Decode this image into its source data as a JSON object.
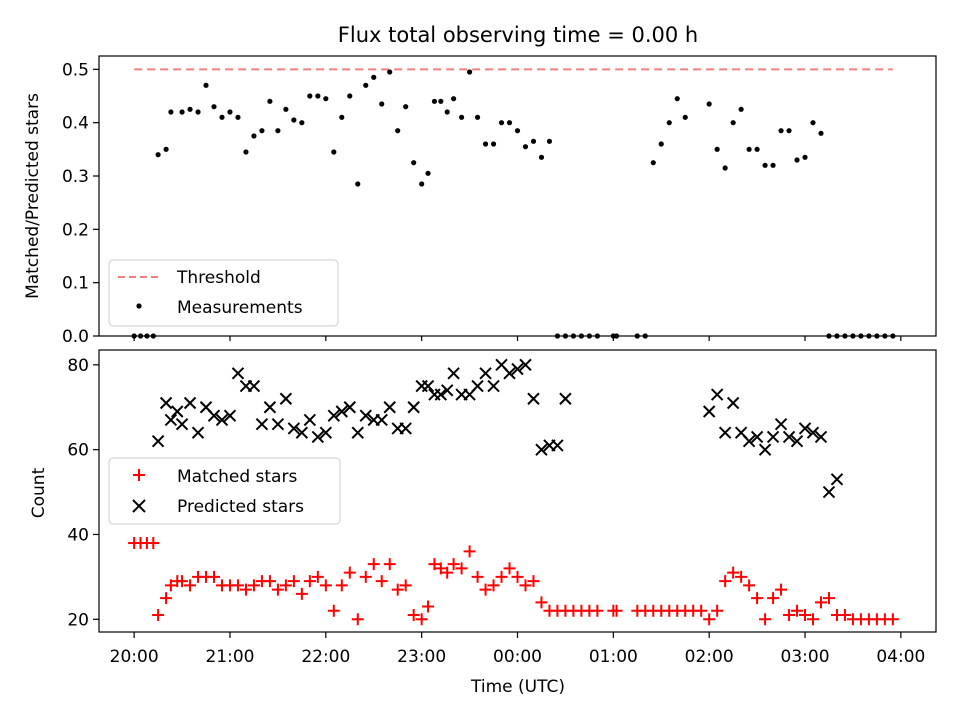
{
  "chart_data": [
    {
      "type": "scatter",
      "title": "Flux total observing time = 0.00 h",
      "ylabel": "Matched/Predicted stars",
      "xlabel": "",
      "ylim": [
        0,
        0.525
      ],
      "xlim": [
        "19:38",
        "04:22"
      ],
      "yticks": [
        "0.0",
        "0.1",
        "0.2",
        "0.3",
        "0.4",
        "0.5"
      ],
      "legend_position": "lower-left",
      "series": [
        {
          "name": "Threshold",
          "style": "dashed-line",
          "color": "#f08080",
          "x": [
            "20:00",
            "03:55"
          ],
          "y": [
            0.5,
            0.5
          ]
        },
        {
          "name": "Measurements",
          "style": "dots",
          "color": "#000000",
          "x": [
            "20:00",
            "20:04",
            "20:08",
            "20:12",
            "20:15",
            "20:20",
            "20:23",
            "20:30",
            "20:35",
            "20:40",
            "20:45",
            "20:50",
            "20:55",
            "21:00",
            "21:05",
            "21:10",
            "21:15",
            "21:20",
            "21:25",
            "21:30",
            "21:35",
            "21:40",
            "21:45",
            "21:50",
            "21:55",
            "22:00",
            "22:05",
            "22:10",
            "22:15",
            "22:20",
            "22:25",
            "22:30",
            "22:35",
            "22:40",
            "22:45",
            "22:50",
            "22:55",
            "23:00",
            "23:04",
            "23:08",
            "23:12",
            "23:16",
            "23:20",
            "23:25",
            "23:30",
            "23:35",
            "23:40",
            "23:45",
            "23:50",
            "23:55",
            "00:00",
            "00:05",
            "00:10",
            "00:15",
            "00:20",
            "00:25",
            "00:30",
            "00:35",
            "00:40",
            "00:45",
            "00:50",
            "01:00",
            "01:02",
            "01:15",
            "01:20",
            "01:25",
            "01:30",
            "01:35",
            "01:40",
            "01:45",
            "02:00",
            "02:05",
            "02:10",
            "02:15",
            "02:20",
            "02:25",
            "02:30",
            "02:35",
            "02:40",
            "02:45",
            "02:50",
            "02:55",
            "03:00",
            "03:05",
            "03:10",
            "03:15",
            "03:20",
            "03:25",
            "03:30",
            "03:35",
            "03:40",
            "03:45",
            "03:50",
            "03:55"
          ],
          "y": [
            0.0,
            0.0,
            0.0,
            0.0,
            0.34,
            0.35,
            0.42,
            0.42,
            0.425,
            0.42,
            0.47,
            0.43,
            0.41,
            0.42,
            0.41,
            0.345,
            0.375,
            0.385,
            0.44,
            0.385,
            0.425,
            0.405,
            0.4,
            0.45,
            0.45,
            0.445,
            0.345,
            0.41,
            0.45,
            0.285,
            0.47,
            0.485,
            0.435,
            0.495,
            0.385,
            0.43,
            0.325,
            0.285,
            0.305,
            0.44,
            0.44,
            0.42,
            0.445,
            0.41,
            0.495,
            0.41,
            0.36,
            0.36,
            0.4,
            0.4,
            0.385,
            0.355,
            0.365,
            0.335,
            0.365,
            0.0,
            0.0,
            0.0,
            0.0,
            0.0,
            0.0,
            0.0,
            0.0,
            0.0,
            0.0,
            0.325,
            0.36,
            0.4,
            0.445,
            0.41,
            0.435,
            0.35,
            0.315,
            0.4,
            0.425,
            0.35,
            0.35,
            0.32,
            0.32,
            0.385,
            0.385,
            0.33,
            0.335,
            0.4,
            0.38,
            0.0,
            0.0,
            0.0,
            0.0,
            0.0,
            0.0,
            0.0,
            0.0,
            0.0
          ]
        }
      ]
    },
    {
      "type": "scatter",
      "title": "",
      "ylabel": "Count",
      "xlabel": "Time (UTC)",
      "ylim": [
        17,
        83.5
      ],
      "yticks": [
        "20",
        "40",
        "60",
        "80"
      ],
      "xticks": [
        "20:00",
        "21:00",
        "22:00",
        "23:00",
        "00:00",
        "01:00",
        "02:00",
        "03:00",
        "04:00"
      ],
      "legend_position": "middle-left",
      "series": [
        {
          "name": "Matched stars",
          "marker": "+",
          "color": "#ff0000",
          "x": [
            "20:00",
            "20:04",
            "20:08",
            "20:12",
            "20:15",
            "20:20",
            "20:23",
            "20:27",
            "20:30",
            "20:35",
            "20:40",
            "20:45",
            "20:50",
            "20:55",
            "21:00",
            "21:05",
            "21:10",
            "21:15",
            "21:20",
            "21:25",
            "21:30",
            "21:35",
            "21:40",
            "21:45",
            "21:50",
            "21:55",
            "22:00",
            "22:05",
            "22:10",
            "22:15",
            "22:20",
            "22:25",
            "22:30",
            "22:35",
            "22:40",
            "22:45",
            "22:50",
            "22:55",
            "23:00",
            "23:04",
            "23:08",
            "23:12",
            "23:16",
            "23:20",
            "23:25",
            "23:30",
            "23:35",
            "23:40",
            "23:45",
            "23:50",
            "23:55",
            "00:00",
            "00:05",
            "00:10",
            "00:15",
            "00:20",
            "00:25",
            "00:30",
            "00:35",
            "00:40",
            "00:45",
            "00:50",
            "01:00",
            "01:02",
            "01:15",
            "01:20",
            "01:25",
            "01:30",
            "01:35",
            "01:40",
            "01:45",
            "01:50",
            "01:55",
            "02:00",
            "02:05",
            "02:10",
            "02:15",
            "02:20",
            "02:25",
            "02:30",
            "02:35",
            "02:40",
            "02:45",
            "02:50",
            "02:55",
            "03:00",
            "03:05",
            "03:10",
            "03:15",
            "03:20",
            "03:25",
            "03:30",
            "03:35",
            "03:40",
            "03:45",
            "03:50",
            "03:55"
          ],
          "y": [
            38,
            38,
            38,
            38,
            21,
            25,
            28,
            29,
            29,
            28,
            30,
            30,
            30,
            28,
            28,
            28,
            27,
            28,
            29,
            29,
            27,
            28,
            29,
            26,
            29,
            30,
            28,
            22,
            28,
            31,
            20,
            30,
            33,
            29,
            33,
            27,
            28,
            21,
            20,
            23,
            33,
            32,
            31,
            33,
            32,
            36,
            30,
            27,
            28,
            30,
            32,
            30,
            28,
            29,
            24,
            22,
            22,
            22,
            22,
            22,
            22,
            22,
            22,
            22,
            22,
            22,
            22,
            22,
            22,
            22,
            22,
            22,
            22,
            20,
            22,
            29,
            31,
            30,
            28,
            25,
            20,
            25,
            27,
            21,
            22,
            21,
            20,
            24,
            25,
            21,
            21,
            20,
            20,
            20,
            20,
            20,
            20
          ]
        },
        {
          "name": "Predicted stars",
          "marker": "x",
          "color": "#000000",
          "x": [
            "20:15",
            "20:20",
            "20:23",
            "20:27",
            "20:30",
            "20:35",
            "20:40",
            "20:45",
            "20:50",
            "20:55",
            "21:00",
            "21:05",
            "21:10",
            "21:15",
            "21:20",
            "21:25",
            "21:30",
            "21:35",
            "21:40",
            "21:45",
            "21:50",
            "21:55",
            "22:00",
            "22:05",
            "22:10",
            "22:15",
            "22:20",
            "22:25",
            "22:30",
            "22:35",
            "22:40",
            "22:45",
            "22:50",
            "22:55",
            "23:00",
            "23:04",
            "23:08",
            "23:12",
            "23:16",
            "23:20",
            "23:25",
            "23:30",
            "23:35",
            "23:40",
            "23:45",
            "23:50",
            "23:55",
            "00:00",
            "00:05",
            "00:10",
            "00:15",
            "00:20",
            "00:25",
            "00:30",
            "02:00",
            "02:05",
            "02:10",
            "02:15",
            "02:20",
            "02:25",
            "02:30",
            "02:35",
            "02:40",
            "02:45",
            "02:50",
            "02:55",
            "03:00",
            "03:05",
            "03:10",
            "03:15",
            "03:20",
            "03:25",
            "03:30",
            "03:35"
          ],
          "y": [
            62,
            71,
            67,
            69,
            66,
            71,
            64,
            70,
            68,
            67,
            68,
            78,
            75,
            75,
            66,
            70,
            66,
            72,
            65,
            64,
            67,
            63,
            64,
            68,
            69,
            70,
            64,
            68,
            67,
            67,
            70,
            65,
            65,
            70,
            75,
            75,
            73,
            73,
            74,
            78,
            73,
            73,
            75,
            78,
            75,
            80,
            78,
            79,
            80,
            72,
            60,
            61,
            61,
            72,
            69,
            73,
            64,
            71,
            64,
            62,
            63,
            60,
            63,
            66,
            63,
            62,
            65,
            64,
            63,
            50,
            53,
            null,
            null,
            null
          ]
        }
      ]
    }
  ],
  "legend_top": {
    "threshold_label": "Threshold",
    "measurements_label": "Measurements"
  },
  "legend_bottom": {
    "matched_label": "Matched stars",
    "predicted_label": "Predicted stars"
  }
}
